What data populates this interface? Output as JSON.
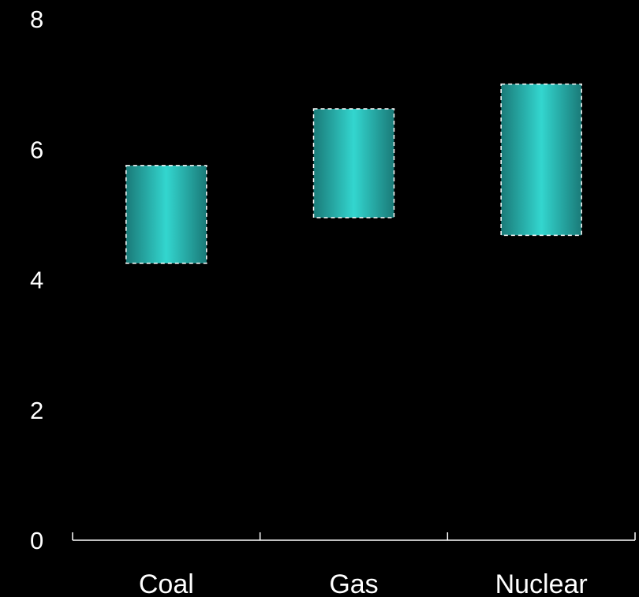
{
  "chart_data": {
    "type": "bar",
    "subtype": "floating-range",
    "categories": [
      "Coal",
      "Gas",
      "Nuclear"
    ],
    "series": [
      {
        "ranges": [
          [
            4.25,
            5.75
          ],
          [
            4.95,
            6.62
          ],
          [
            4.68,
            7.0
          ]
        ]
      }
    ],
    "ylim": [
      0,
      8
    ],
    "yticks": [
      "0",
      "2",
      "4",
      "6",
      "8"
    ],
    "xlabel": "",
    "ylabel": "",
    "grid": false,
    "legend": "none",
    "colors": {
      "background": "#000000",
      "bar_edge": "#1a7a78",
      "bar_center": "#33d6cf",
      "text": "#ffffff",
      "outline": "#ffffff"
    }
  }
}
